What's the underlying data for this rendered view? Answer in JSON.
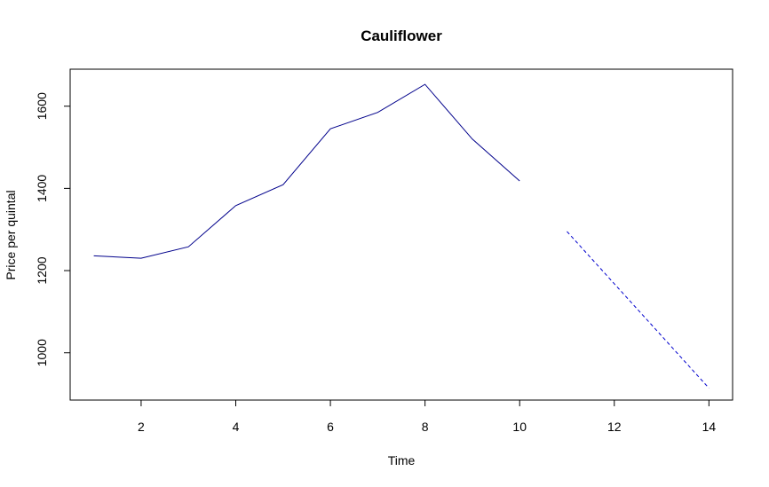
{
  "chart_data": {
    "type": "line",
    "title": "Cauliflower",
    "xlabel": "Time",
    "ylabel": "Price per quintal",
    "xlim": [
      0.5,
      14.5
    ],
    "ylim": [
      885,
      1690
    ],
    "x_ticks": [
      2,
      4,
      6,
      8,
      10,
      12,
      14
    ],
    "y_ticks": [
      1000,
      1200,
      1400,
      1600
    ],
    "grid": false,
    "series": [
      {
        "x": [
          1,
          2,
          3,
          4,
          5,
          6,
          7,
          8,
          9,
          10
        ],
        "values": [
          1236,
          1230,
          1258,
          1358,
          1409,
          1545,
          1585,
          1653,
          1520,
          1418
        ],
        "color": "#00008B",
        "style": "solid"
      },
      {
        "x": [
          11,
          12,
          13,
          14
        ],
        "values": [
          1295,
          1168,
          1041,
          914
        ],
        "color": "#0000CD",
        "style": "dashed"
      }
    ]
  }
}
